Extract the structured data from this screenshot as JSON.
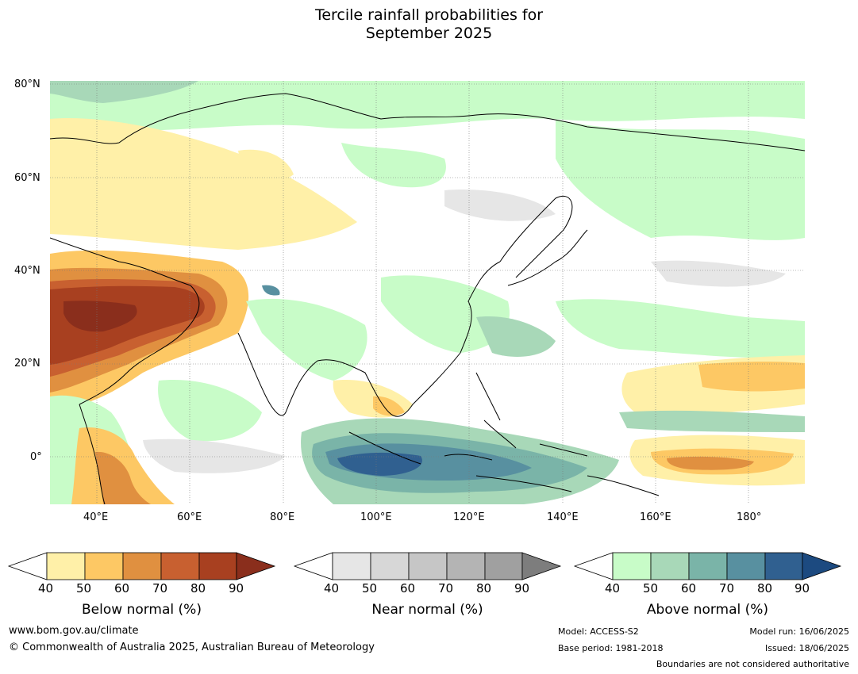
{
  "title_line1": "Tercile rainfall probabilities for",
  "title_line2": "September 2025",
  "map": {
    "lat_labels": [
      "80°N",
      "60°N",
      "40°N",
      "20°N",
      "0°"
    ],
    "lon_labels": [
      "40°E",
      "60°E",
      "80°E",
      "100°E",
      "120°E",
      "140°E",
      "160°E",
      "180°"
    ]
  },
  "colorbars": [
    {
      "label": "Below normal (%)",
      "ticks": [
        "40",
        "50",
        "60",
        "70",
        "80",
        "90"
      ],
      "colors": [
        "#fff0a8",
        "#fdc864",
        "#e09040",
        "#c86030",
        "#a84020"
      ],
      "extend": "#8a2e1c"
    },
    {
      "label": "Near normal (%)",
      "ticks": [
        "40",
        "50",
        "60",
        "70",
        "80",
        "90"
      ],
      "colors": [
        "#e6e6e6",
        "#d7d7d7",
        "#c6c6c6",
        "#b4b4b4",
        "#a0a0a0"
      ],
      "extend": "#7d7d7d"
    },
    {
      "label": "Above normal (%)",
      "ticks": [
        "40",
        "50",
        "60",
        "70",
        "80",
        "90"
      ],
      "colors": [
        "#c8fcc8",
        "#a8d8b8",
        "#7ab4a8",
        "#5890a0",
        "#306090"
      ],
      "extend": "#1c4a80"
    }
  ],
  "footer": {
    "website": "www.bom.gov.au/climate",
    "copyright": "© Commonwealth of Australia 2025, Australian Bureau of Meteorology",
    "model": "Model: ACCESS-S2",
    "base_period": "Base period: 1981-2018",
    "model_run": "Model run: 16/06/2025",
    "issued": "Issued: 18/06/2025",
    "boundaries": "Boundaries are not considered authoritative"
  }
}
